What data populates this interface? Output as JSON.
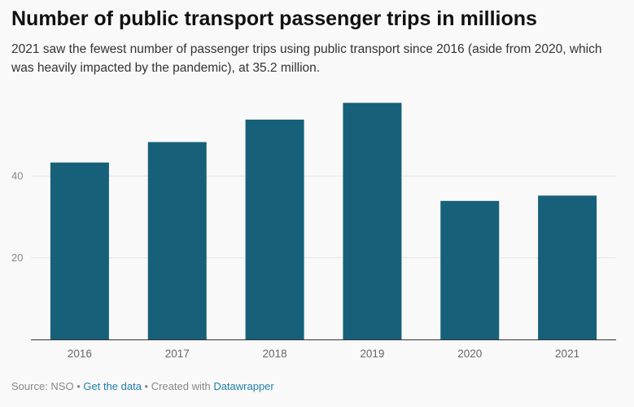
{
  "title": "Number of public transport passenger trips in millions",
  "subtitle": "2021 saw the fewest number of passenger trips using public transport since 2016 (aside from 2020, which was heavily impacted by the pandemic), at 35.2 million.",
  "footer": {
    "source": "Source: NSO",
    "sep1": " • ",
    "get_data": "Get the data",
    "sep2": " • ",
    "created_with": "Created with ",
    "datawrapper": "Datawrapper"
  },
  "colors": {
    "bar": "#17607a",
    "grid": "#e6e6e6",
    "axis": "#333333",
    "tick_text": "#888888",
    "link": "#1f7ea8"
  },
  "chart_data": {
    "type": "bar",
    "categories": [
      "2016",
      "2017",
      "2018",
      "2019",
      "2020",
      "2021"
    ],
    "values": [
      43.3,
      48.3,
      53.8,
      57.9,
      33.9,
      35.2
    ],
    "ylim": [
      0,
      60
    ],
    "yticks": [
      20,
      40
    ],
    "grid": true,
    "xlabel": "",
    "ylabel": ""
  }
}
